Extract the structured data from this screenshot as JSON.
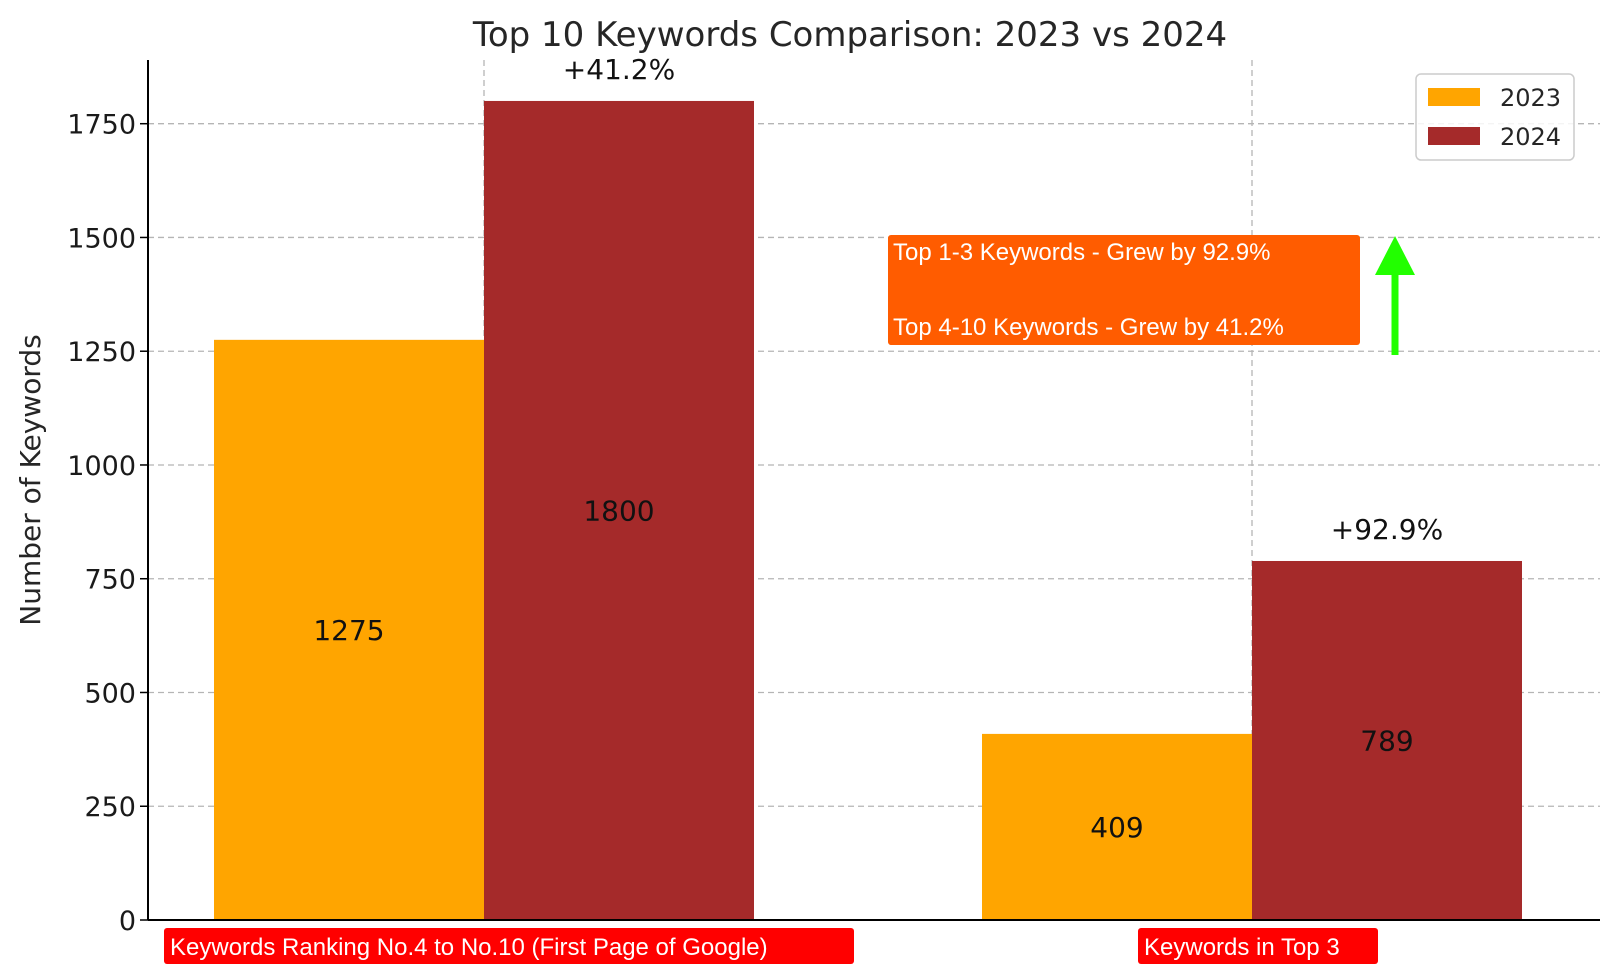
{
  "chart_data": {
    "type": "bar",
    "title": "Top 10 Keywords Comparison: 2023 vs 2024",
    "xlabel": "",
    "ylabel": "Number of Keywords",
    "ylim": [
      0,
      1890
    ],
    "yticks": [
      0,
      250,
      500,
      750,
      1000,
      1250,
      1500,
      1750
    ],
    "grid": true,
    "legend_position": "top-right",
    "categories": [
      "Keywords Ranking No.4 to No.10 (First Page of Google)",
      "Keywords in Top 3"
    ],
    "series": [
      {
        "name": "2023",
        "values": [
          1275,
          409
        ],
        "color": "#FFA500"
      },
      {
        "name": "2024",
        "values": [
          1800,
          789
        ],
        "color": "#A52A2A"
      }
    ],
    "data_labels": [
      [
        "1275",
        "409"
      ],
      [
        "1800",
        "789"
      ]
    ],
    "growth_labels": [
      "+41.2%",
      "+92.9%"
    ],
    "annotation": {
      "lines": [
        "Top 1-3 Keywords - Grew by 92.9%",
        "Top 4-10 Keywords - Grew by 41.2%"
      ],
      "background": "#FF5C00",
      "arrow_color": "#22FF00"
    },
    "category_label_background": "#FF0000"
  }
}
